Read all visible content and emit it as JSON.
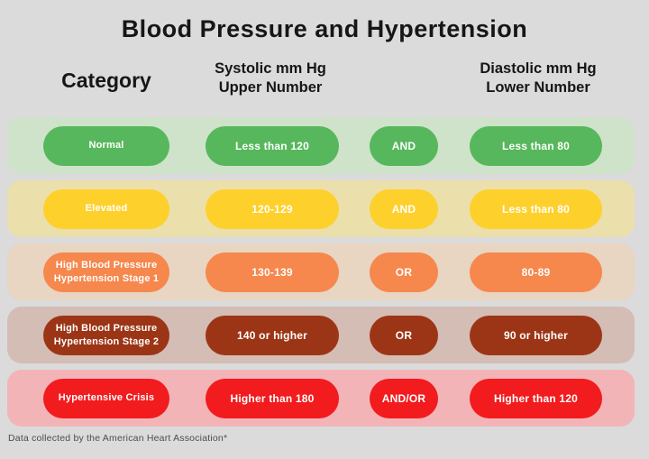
{
  "title": "Blood Pressure and Hypertension",
  "headers": {
    "category": "Category",
    "systolic_line1": "Systolic mm Hg",
    "systolic_line2": "Upper Number",
    "diastolic_line1": "Diastolic mm Hg",
    "diastolic_line2": "Lower Number"
  },
  "rows": [
    {
      "category": "Normal",
      "systolic": "Less than 120",
      "connector": "AND",
      "diastolic": "Less than 80",
      "pill_color": "#57b75c",
      "band_color": "#cee3ca"
    },
    {
      "category": "Elevated",
      "systolic": "120-129",
      "connector": "AND",
      "diastolic": "Less than 80",
      "pill_color": "#fed02c",
      "band_color": "#ebdfab"
    },
    {
      "category": "High Blood Pressure Hypertension Stage 1",
      "systolic": "130-139",
      "connector": "OR",
      "diastolic": "80-89",
      "pill_color": "#f6874d",
      "band_color": "#e8d5c2"
    },
    {
      "category": "High Blood Pressure Hypertension Stage 2",
      "systolic": "140 or higher",
      "connector": "OR",
      "diastolic": "90 or higher",
      "pill_color": "#9c3516",
      "band_color": "#d4bdb4"
    },
    {
      "category": "Hypertensive Crisis",
      "systolic": "Higher than 180",
      "connector": "AND/OR",
      "diastolic": "Higher than 120",
      "pill_color": "#f21b1e",
      "band_color": "#f3b4b8"
    }
  ],
  "footer": "Data collected by the American Heart Association*",
  "colors": {
    "background": "#dbdbdb",
    "heading_text": "#161616",
    "pill_text": "#ffffff",
    "footer_text": "#4d4d4d"
  },
  "chart_data": {
    "type": "table",
    "title": "Blood Pressure and Hypertension",
    "columns": [
      "Category",
      "Systolic mm Hg Upper Number",
      "Connector",
      "Diastolic mm Hg Lower Number"
    ],
    "rows": [
      [
        "Normal",
        "Less than 120",
        "AND",
        "Less than 80"
      ],
      [
        "Elevated",
        "120-129",
        "AND",
        "Less than 80"
      ],
      [
        "High Blood Pressure Hypertension Stage 1",
        "130-139",
        "OR",
        "80-89"
      ],
      [
        "High Blood Pressure Hypertension Stage 2",
        "140 or higher",
        "OR",
        "90 or higher"
      ],
      [
        "Hypertensive Crisis",
        "Higher than 180",
        "AND/OR",
        "Higher than 120"
      ]
    ],
    "source": "Data collected by the American Heart Association*",
    "row_colors": [
      "#57b75c",
      "#fed02c",
      "#f6874d",
      "#9c3516",
      "#f21b1e"
    ]
  }
}
